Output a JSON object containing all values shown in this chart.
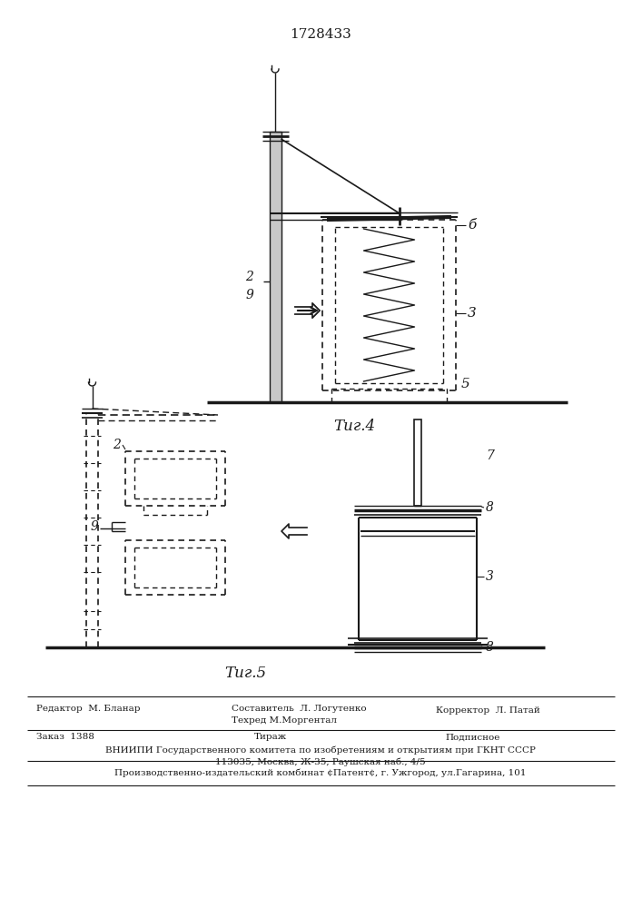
{
  "patent_number": "1728433",
  "fig4_label": "Τиг.4",
  "fig5_label": "Τиг.5",
  "label_2": "2",
  "label_9": "9",
  "label_3": "3",
  "label_5": "5",
  "label_6": "б",
  "label_7": "7",
  "label_8": "8",
  "footer_line1_col1": "Редактор  М. Бланар",
  "footer_line1_col2": "Составитель  Л. Логутенко",
  "footer_line2_col2": "Техред М.Моргентал",
  "footer_line1_col3": "Корректор  Л. Патай",
  "footer_zakaz": "Заказ  1388",
  "footer_tirazh": "Тираж",
  "footer_podpisnoe": "Подписное",
  "footer_vniipи": "ВНИИПИ Государственного комитета по изобретениям и открытиям при ГКНТ СССР",
  "footer_address": "113035, Москва, Ж-35, Раушская наб., 4/5",
  "footer_proizv": "Производственно-издательский комбинат ¢Патент¢, г. Ужгород, ул.Гагарина, 101",
  "bg_color": "#ffffff",
  "line_color": "#1a1a1a"
}
